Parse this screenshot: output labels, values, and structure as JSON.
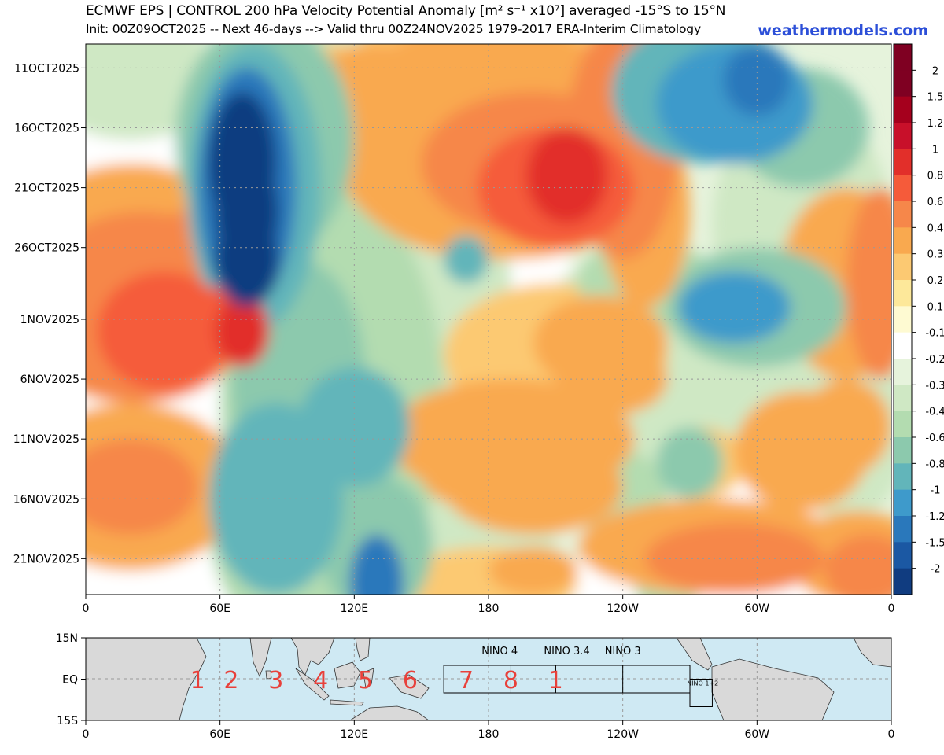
{
  "title": "ECMWF EPS | CONTROL 200 hPa Velocity Potential Anomaly [m² s⁻¹ x10⁷] averaged -15°S to 15°N",
  "subtitle": "Init: 00Z09OCT2025 -- Next 46-days --> Valid thru 00Z24NOV2025 1979-2017 ERA-Interim Climatology",
  "brand": "weathermodels.com",
  "chart_data": [
    {
      "type": "heatmap",
      "title": "ECMWF EPS | CONTROL 200 hPa Velocity Potential Anomaly [m² s⁻¹ x10⁷] averaged -15°S to 15°N",
      "x_ticks": [
        "0",
        "60E",
        "120E",
        "180",
        "120W",
        "60W",
        "0"
      ],
      "x_tick_lon": [
        0,
        60,
        120,
        180,
        240,
        300,
        360
      ],
      "y_ticks": [
        "11OCT2025",
        "16OCT2025",
        "21OCT2025",
        "26OCT2025",
        "1NOV2025",
        "6NOV2025",
        "11NOV2025",
        "16NOV2025",
        "21NOV2025"
      ],
      "y_tick_day": [
        2,
        7,
        12,
        17,
        23,
        28,
        33,
        38,
        43
      ],
      "ylim_days": [
        0,
        46
      ],
      "grid": true,
      "colorbar": {
        "labels": [
          "2",
          "1.5",
          "1.2",
          "1",
          "0.8",
          "0.6",
          "0.4",
          "0.3",
          "0.2",
          "0.1",
          "-0.1",
          "-0.2",
          "-0.3",
          "-0.4",
          "-0.6",
          "-0.8",
          "-1",
          "-1.2",
          "-1.5",
          "-2"
        ],
        "colors": [
          "#7f0022",
          "#a5001d",
          "#c8102a",
          "#e22f2a",
          "#f55b3a",
          "#f6874a",
          "#f9a94f",
          "#fcc972",
          "#fde89a",
          "#fefad2",
          "#ffffff",
          "#e6f3dc",
          "#cfe8c4",
          "#b3dcb0",
          "#8cc9ad",
          "#62b5ba",
          "#3e9acb",
          "#2a78bb",
          "#1b58a3",
          "#103c80"
        ]
      },
      "features": [
        {
          "name": "negative anomaly core 70E",
          "lon": 70,
          "day": 12,
          "value": -2
        },
        {
          "name": "positive anomaly 160W",
          "lon": 200,
          "day": 12,
          "value": 1
        },
        {
          "name": "positive anomaly 35E",
          "lon": 35,
          "day": 22,
          "value": 0.8
        },
        {
          "name": "negative anomaly 100W",
          "lon": 260,
          "day": 22,
          "value": -0.8
        },
        {
          "name": "negative anomaly 120E",
          "lon": 120,
          "day": 43,
          "value": -1
        }
      ]
    },
    {
      "type": "map",
      "x_ticks": [
        "0",
        "60E",
        "120E",
        "180",
        "120W",
        "60W",
        "0"
      ],
      "y_ticks": [
        "15N",
        "EQ",
        "15S"
      ],
      "region_numbers": [
        "1",
        "2",
        "3",
        "4",
        "5",
        "6",
        "7",
        "8",
        "1"
      ],
      "region_lon": [
        50,
        65,
        85,
        105,
        125,
        145,
        170,
        190,
        210
      ],
      "nino_boxes": [
        {
          "label": "NINO 4",
          "lon": [
            160,
            210
          ],
          "lat": [
            -5,
            5
          ]
        },
        {
          "label": "NINO 3.4",
          "lon": [
            190,
            240
          ],
          "lat": [
            -5,
            5
          ]
        },
        {
          "label": "NINO 3",
          "lon": [
            210,
            270
          ],
          "lat": [
            -5,
            5
          ]
        },
        {
          "label": "NINO 1+2",
          "lon": [
            270,
            280
          ],
          "lat": [
            -10,
            0
          ]
        }
      ]
    }
  ]
}
